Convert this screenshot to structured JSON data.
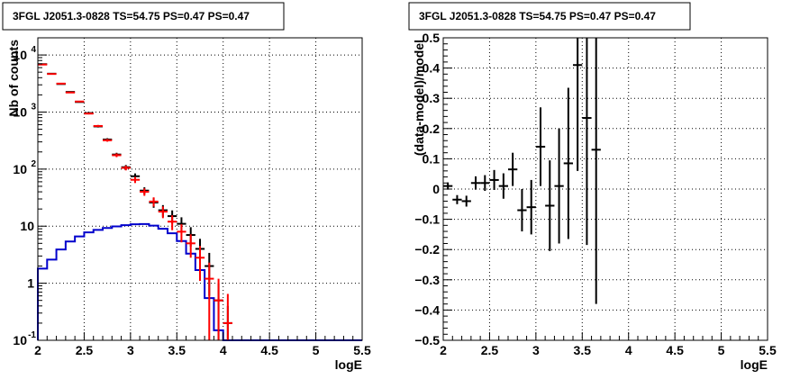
{
  "chart_data": [
    {
      "type": "histogram",
      "title": "3FGL J2051.3-0828 TS=54.75 PS=0.47 PS=0.47",
      "xlabel": "logE",
      "ylabel": "Nb of counts",
      "xlim": [
        2,
        5.5
      ],
      "ylim": [
        0.1,
        20000
      ],
      "yscale": "log",
      "grid": true,
      "x_ticks": [
        "2",
        "2.5",
        "3",
        "3.5",
        "4",
        "4.5",
        "5",
        "5.5"
      ],
      "y_ticks": [
        {
          "value": 0.1,
          "label": "10",
          "exp": "-1"
        },
        {
          "value": 1,
          "label": "1",
          "exp": ""
        },
        {
          "value": 10,
          "label": "10",
          "exp": ""
        },
        {
          "value": 100,
          "label": "10",
          "exp": "2"
        },
        {
          "value": 1000,
          "label": "10",
          "exp": "3"
        },
        {
          "value": 10000,
          "label": "10",
          "exp": "4"
        }
      ],
      "bin_width": 0.1,
      "series": [
        {
          "color": "#000000",
          "style": "errorbar",
          "x": [
            2.05,
            2.15,
            2.25,
            2.35,
            2.45,
            2.55,
            2.65,
            2.75,
            2.85,
            2.95,
            3.05,
            3.15,
            3.25,
            3.35,
            3.45,
            3.55,
            3.65,
            3.75,
            3.85,
            3.95,
            4.05
          ],
          "y": [
            6900,
            4700,
            3100,
            2250,
            1500,
            960,
            560,
            330,
            180,
            108,
            75,
            42,
            26,
            19,
            15,
            11,
            7,
            4,
            2,
            0.5,
            0.2
          ],
          "err": [
            83,
            69,
            56,
            47,
            39,
            31,
            24,
            18,
            13,
            10,
            9,
            6,
            5,
            4.4,
            3.9,
            3.3,
            2.6,
            2,
            1.4,
            0.5,
            0.2
          ]
        },
        {
          "color": "#ff0000",
          "style": "errorbar",
          "x": [
            2.05,
            2.15,
            2.25,
            2.35,
            2.45,
            2.55,
            2.65,
            2.75,
            2.85,
            2.95,
            3.05,
            3.15,
            3.25,
            3.35,
            3.45,
            3.55,
            3.65,
            3.75,
            3.85,
            3.95,
            4.05
          ],
          "y": [
            6800,
            4650,
            3150,
            2200,
            1530,
            940,
            570,
            320,
            175,
            105,
            65,
            40,
            27,
            18,
            12,
            8,
            5,
            2.8,
            1.2,
            0.5,
            0.2
          ],
          "err": [
            82,
            68,
            56,
            47,
            39,
            31,
            24,
            18,
            13,
            10,
            8,
            6,
            5,
            4.2,
            3.5,
            2.8,
            2.2,
            1.7,
            1.1,
            0.7,
            0.45
          ]
        },
        {
          "color": "#0000cc",
          "style": "step",
          "edges": [
            2.0,
            2.1,
            2.2,
            2.3,
            2.4,
            2.5,
            2.6,
            2.7,
            2.8,
            2.9,
            3.0,
            3.1,
            3.2,
            3.3,
            3.4,
            3.5,
            3.6,
            3.7,
            3.8,
            3.9,
            4.0,
            5.5
          ],
          "y": [
            1.8,
            2.6,
            3.9,
            5.4,
            6.6,
            7.8,
            8.6,
            9.3,
            9.9,
            10.4,
            10.8,
            10.9,
            10.2,
            9.0,
            7.5,
            5.5,
            3.3,
            1.7,
            0.55,
            0.15,
            0.1
          ]
        }
      ]
    },
    {
      "type": "scatter",
      "title": "3FGL J2051.3-0828 TS=54.75 PS=0.47 PS=0.47",
      "xlabel": "logE",
      "ylabel": "(data-model)/model",
      "xlim": [
        2,
        5.5
      ],
      "ylim": [
        -0.5,
        0.5
      ],
      "grid": true,
      "x_ticks": [
        "2",
        "2.5",
        "3",
        "3.5",
        "4",
        "4.5",
        "5",
        "5.5"
      ],
      "y_ticks": [
        "−0.5",
        "−0.4",
        "−0.3",
        "−0.2",
        "−0.1",
        "0",
        "0.1",
        "0.2",
        "0.3",
        "0.4",
        "0.5"
      ],
      "bin_width": 0.1,
      "series": [
        {
          "color": "#000000",
          "style": "errorbar",
          "x": [
            2.05,
            2.15,
            2.25,
            2.35,
            2.45,
            2.55,
            2.65,
            2.75,
            2.85,
            2.95,
            3.05,
            3.15,
            3.25,
            3.35,
            3.45,
            3.55,
            3.65
          ],
          "y": [
            0.01,
            -0.035,
            -0.04,
            0.02,
            0.02,
            0.03,
            0.01,
            0.065,
            -0.07,
            -0.06,
            0.14,
            -0.055,
            0.01,
            0.085,
            0.41,
            0.235,
            0.13
          ],
          "err": [
            0.012,
            0.015,
            0.018,
            0.022,
            0.026,
            0.033,
            0.042,
            0.055,
            0.07,
            0.09,
            0.13,
            0.15,
            0.19,
            0.25,
            0.35,
            0.42,
            0.51
          ]
        }
      ]
    }
  ]
}
